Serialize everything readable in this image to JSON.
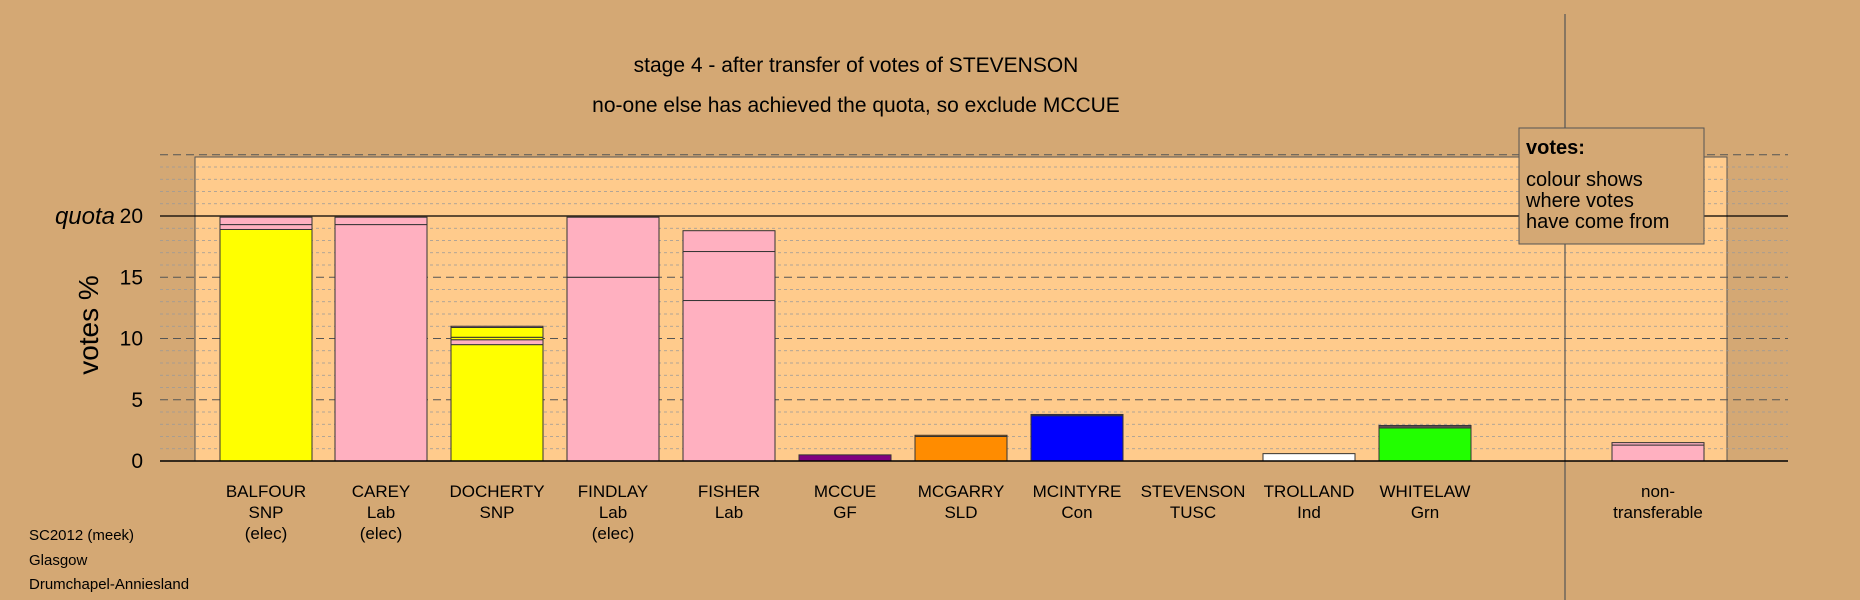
{
  "chart_data": {
    "type": "bar",
    "title": "stage 4 - after transfer of votes of STEVENSON",
    "subtitle": "no-one else has achieved the quota, so exclude MCCUE",
    "ylabel": "votes %",
    "ylim": [
      0,
      25
    ],
    "yticks": [
      0,
      5,
      10,
      15,
      20
    ],
    "quota": 20,
    "quota_label": "quota",
    "grid": true,
    "legend": {
      "placement": "top-right",
      "title": "votes:",
      "lines": [
        "colour shows",
        "where votes",
        "have come from"
      ]
    },
    "categories": [
      {
        "name": "BALFOUR",
        "party": "SNP",
        "note": "(elec)"
      },
      {
        "name": "CAREY",
        "party": "Lab",
        "note": "(elec)"
      },
      {
        "name": "DOCHERTY",
        "party": "SNP",
        "note": ""
      },
      {
        "name": "FINDLAY",
        "party": "Lab",
        "note": "(elec)"
      },
      {
        "name": "FISHER",
        "party": "Lab",
        "note": ""
      },
      {
        "name": "MCCUE",
        "party": "GF",
        "note": ""
      },
      {
        "name": "MCGARRY",
        "party": "SLD",
        "note": ""
      },
      {
        "name": "MCINTYRE",
        "party": "Con",
        "note": ""
      },
      {
        "name": "STEVENSON",
        "party": "TUSC",
        "note": ""
      },
      {
        "name": "TROLLAND",
        "party": "Ind",
        "note": ""
      },
      {
        "name": "WHITELAW",
        "party": "Grn",
        "note": ""
      },
      {
        "name": "non-",
        "party": "transferable",
        "note": ""
      }
    ],
    "bars": [
      [
        {
          "value": 18.9,
          "color": "#ffff00"
        },
        {
          "value": 0.4,
          "color": "#ffb0c0"
        },
        {
          "value": 0.6,
          "color": "#ffb0c0"
        }
      ],
      [
        {
          "value": 19.3,
          "color": "#ffb0c0"
        },
        {
          "value": 0.6,
          "color": "#ffb0c0"
        }
      ],
      [
        {
          "value": 9.5,
          "color": "#ffff00"
        },
        {
          "value": 0.4,
          "color": "#ffb0c0"
        },
        {
          "value": 0.2,
          "color": "#ffff00"
        },
        {
          "value": 0.8,
          "color": "#ffff00"
        },
        {
          "value": 0.1,
          "color": "#ffb0c0"
        }
      ],
      [
        {
          "value": 15.0,
          "color": "#ffb0c0"
        },
        {
          "value": 4.9,
          "color": "#ffb0c0"
        }
      ],
      [
        {
          "value": 13.1,
          "color": "#ffb0c0"
        },
        {
          "value": 4.0,
          "color": "#ffb0c0"
        },
        {
          "value": 1.7,
          "color": "#ffb0c0"
        }
      ],
      [
        {
          "value": 0.5,
          "color": "#800080"
        }
      ],
      [
        {
          "value": 2.0,
          "color": "#ff8c00"
        },
        {
          "value": 0.1,
          "color": "#ff8c00"
        }
      ],
      [
        {
          "value": 3.7,
          "color": "#0000ff"
        },
        {
          "value": 0.1,
          "color": "#0000ff"
        }
      ],
      [],
      [
        {
          "value": 0.6,
          "color": "#ffffff"
        }
      ],
      [
        {
          "value": 2.7,
          "color": "#22ff00"
        },
        {
          "value": 0.1,
          "color": "#ffb0c0"
        },
        {
          "value": 0.1,
          "color": "#ffb0c0"
        }
      ],
      [
        {
          "value": 1.3,
          "color": "#ffb0c0"
        },
        {
          "value": 0.2,
          "color": "#ffb0c0"
        }
      ]
    ]
  },
  "footer": {
    "election": "SC2012 (meek)",
    "council": "Glasgow",
    "ward": "Drumchapel-Anniesland"
  },
  "colors": {
    "background": "#d4a874",
    "plot_area": "#ffcb8c",
    "legend_box": "#d4a874"
  }
}
